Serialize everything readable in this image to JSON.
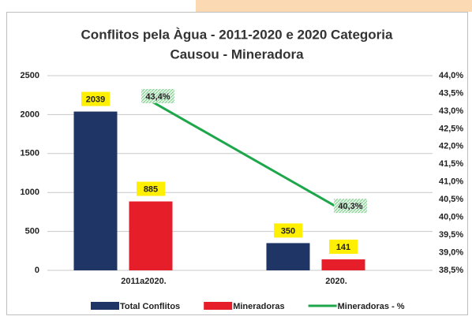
{
  "chart_data": {
    "type": "bar",
    "title": [
      "Conflitos pela Àgua - 2011-2020 e 2020 Categoria",
      "Causou - Mineradora"
    ],
    "categories": [
      "2011a2020.",
      "2020."
    ],
    "series": [
      {
        "name": "Total Conflitos",
        "color": "#1f3565",
        "values": [
          2039,
          350
        ]
      },
      {
        "name": "Mineradoras",
        "color": "#e61e2a",
        "values": [
          885,
          141
        ]
      },
      {
        "name": "Mineradoras - %",
        "color": "#1ea64b",
        "type": "line",
        "axis": "y2",
        "values": [
          43.4,
          40.3
        ],
        "value_labels": [
          "43,4%",
          "40,3%"
        ]
      }
    ],
    "ylim": [
      0,
      2500
    ],
    "yticks": [
      0,
      500,
      1000,
      1500,
      2000,
      2500
    ],
    "y2lim": [
      38.5,
      44.0
    ],
    "y2ticks": [
      {
        "value": 38.5,
        "label": "38,5%"
      },
      {
        "value": 39.0,
        "label": "39,0%"
      },
      {
        "value": 39.5,
        "label": "39,5%"
      },
      {
        "value": 40.0,
        "label": "40,0%"
      },
      {
        "value": 40.5,
        "label": "40,5%"
      },
      {
        "value": 41.0,
        "label": "41,0%"
      },
      {
        "value": 41.5,
        "label": "41,5%"
      },
      {
        "value": 42.0,
        "label": "42,0%"
      },
      {
        "value": 42.5,
        "label": "42,5%"
      },
      {
        "value": 43.0,
        "label": "43,0%"
      },
      {
        "value": 43.5,
        "label": "43,5%"
      },
      {
        "value": 44.0,
        "label": "44,0%"
      }
    ],
    "grid": true,
    "legend": "bottom"
  }
}
